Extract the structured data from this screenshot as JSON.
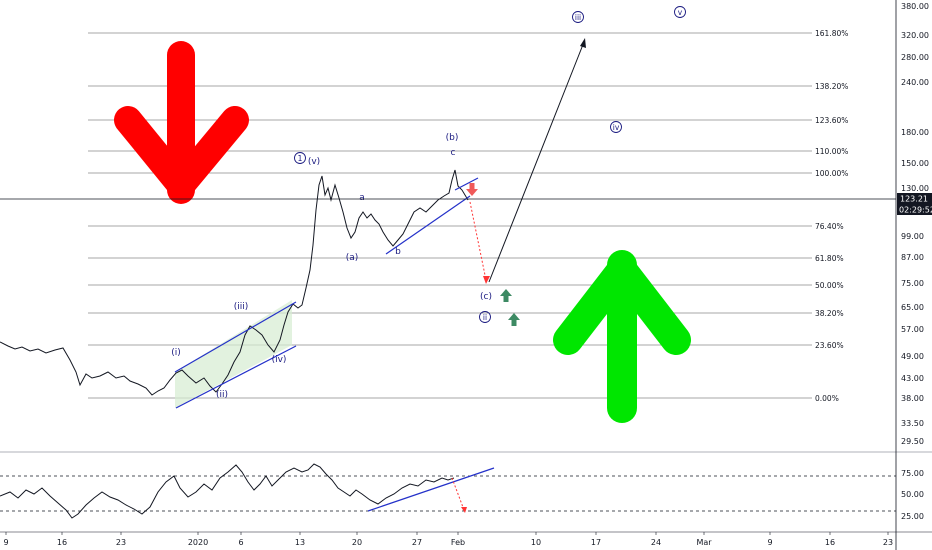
{
  "chart_data": [
    {
      "type": "line",
      "price_axis": {
        "scale": "log",
        "ticks": [
          "380.00",
          "320.00",
          "280.00",
          "240.00",
          "180.00",
          "150.00",
          "130.00",
          "99.00",
          "87.00",
          "75.00",
          "65.00",
          "57.00",
          "49.00",
          "43.00",
          "38.00",
          "33.50",
          "29.50"
        ]
      },
      "time_axis": {
        "ticks": [
          "9",
          "16",
          "23",
          "2020",
          "6",
          "13",
          "20",
          "27",
          "Feb",
          "10",
          "17",
          "24",
          "Mar",
          "9",
          "16",
          "23"
        ]
      },
      "current_price": "123.21",
      "countdown": "02:29:52",
      "fib_levels": [
        "161.80%",
        "138.20%",
        "123.60%",
        "110.00%",
        "100.00%",
        "76.40%",
        "61.80%",
        "50.00%",
        "38.20%",
        "23.60%",
        "0.00%"
      ],
      "wave_labels": [
        "(i)",
        "(ii)",
        "(iii)",
        "(iv)",
        "(v)",
        "1",
        "(a)",
        "a",
        "b",
        "(b)",
        "c",
        "(c)",
        "ii",
        "iii",
        "iv",
        "v"
      ],
      "colors": {
        "price": "#131722",
        "channel": "#2431c9",
        "bearish_arrow": "#ff0000",
        "bullish_arrow": "#00e600",
        "projection": "#131722",
        "dashed_path": "#ff3333",
        "small_up": "#3d8a63",
        "small_down": "#f05a5a",
        "channel_fill": "#d6ecd2"
      }
    },
    {
      "type": "line",
      "name": "oscillator",
      "axis_ticks": [
        "75.00",
        "50.00",
        "25.00"
      ],
      "reference_lines": [
        70,
        30
      ]
    }
  ]
}
